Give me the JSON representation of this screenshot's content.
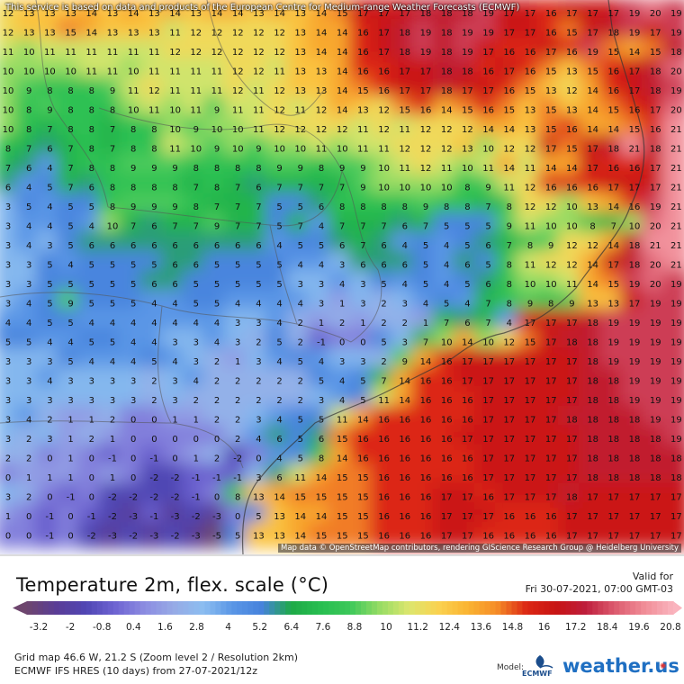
{
  "notice": "This service is based on data and products of the European Centre for Medium-range Weather Forecasts (ECMWF)",
  "attribution": "Map data © OpenStreetMap contributors, rendering GIScience Research Group @ Heidelberg University",
  "legend": {
    "title": "Temperature 2m, flex. scale (°C)",
    "valid_for": "Valid for",
    "valid_date": "Fri 30-07-2021, 07:00 GMT-03",
    "ticks": [
      "-3.2",
      "-2",
      "-0.8",
      "0.4",
      "1.6",
      "2.8",
      "4",
      "5.2",
      "6.4",
      "7.6",
      "8.8",
      "10",
      "11.2",
      "12.4",
      "13.6",
      "14.8",
      "16",
      "17.2",
      "18.4",
      "19.6",
      "20.8"
    ]
  },
  "meta": {
    "grid": "Grid map 46.6 W, 21.2 S (Zoom level 2 / Resolution 2km)",
    "model_run": "ECMWF IFS HRES (10 days) from 27-07-2021/12z",
    "model_label": "Model:",
    "ecmwf": "ECMWF",
    "brand": "weather.us"
  },
  "grid_values": [
    [
      12,
      13,
      13,
      13,
      14,
      13,
      14,
      13,
      14,
      13,
      14,
      14,
      13,
      14,
      13,
      14,
      15,
      17,
      17,
      17,
      18,
      18,
      18,
      19,
      17,
      17,
      16,
      17,
      17,
      17,
      19,
      20,
      19
    ],
    [
      12,
      13,
      13,
      15,
      14,
      13,
      13,
      13,
      11,
      12,
      12,
      12,
      12,
      12,
      13,
      14,
      14,
      16,
      17,
      18,
      19,
      18,
      19,
      19,
      17,
      17,
      16,
      15,
      17,
      18,
      19,
      17,
      19
    ],
    [
      11,
      10,
      11,
      11,
      11,
      11,
      11,
      11,
      12,
      12,
      12,
      12,
      12,
      12,
      13,
      14,
      14,
      16,
      17,
      18,
      19,
      18,
      19,
      17,
      16,
      16,
      17,
      16,
      19,
      15,
      14,
      15,
      18
    ],
    [
      10,
      10,
      10,
      10,
      11,
      11,
      10,
      11,
      11,
      11,
      11,
      12,
      12,
      11,
      13,
      13,
      14,
      16,
      16,
      17,
      17,
      18,
      18,
      16,
      17,
      16,
      15,
      13,
      15,
      16,
      17,
      18,
      20
    ],
    [
      10,
      9,
      8,
      8,
      8,
      9,
      11,
      12,
      11,
      11,
      11,
      12,
      11,
      12,
      13,
      13,
      14,
      15,
      16,
      17,
      17,
      18,
      17,
      17,
      16,
      15,
      13,
      12,
      14,
      16,
      17,
      18,
      19
    ],
    [
      10,
      8,
      9,
      8,
      8,
      8,
      10,
      11,
      10,
      11,
      9,
      11,
      11,
      12,
      11,
      12,
      14,
      13,
      12,
      15,
      16,
      14,
      15,
      16,
      15,
      13,
      15,
      13,
      14,
      15,
      16,
      17,
      20
    ],
    [
      10,
      8,
      7,
      8,
      8,
      7,
      8,
      8,
      10,
      9,
      10,
      10,
      11,
      12,
      12,
      12,
      12,
      11,
      12,
      11,
      12,
      12,
      12,
      14,
      14,
      13,
      15,
      16,
      14,
      14,
      15,
      16,
      21
    ],
    [
      8,
      7,
      6,
      7,
      8,
      7,
      8,
      8,
      11,
      10,
      9,
      10,
      9,
      10,
      10,
      11,
      10,
      11,
      11,
      12,
      12,
      12,
      13,
      10,
      12,
      12,
      17,
      15,
      17,
      18,
      21,
      18,
      21
    ],
    [
      7,
      6,
      4,
      7,
      8,
      8,
      9,
      9,
      9,
      8,
      8,
      8,
      8,
      9,
      9,
      8,
      9,
      9,
      10,
      11,
      12,
      11,
      10,
      11,
      14,
      11,
      14,
      14,
      17,
      16,
      16,
      17,
      21
    ],
    [
      6,
      4,
      5,
      7,
      6,
      8,
      8,
      8,
      8,
      7,
      8,
      7,
      6,
      7,
      7,
      7,
      7,
      9,
      10,
      10,
      10,
      10,
      8,
      9,
      11,
      12,
      16,
      16,
      16,
      17,
      17,
      17,
      21
    ],
    [
      3,
      5,
      4,
      5,
      5,
      8,
      9,
      9,
      9,
      8,
      7,
      7,
      7,
      5,
      5,
      6,
      8,
      8,
      8,
      8,
      9,
      8,
      8,
      7,
      8,
      12,
      12,
      10,
      13,
      14,
      16,
      19,
      21
    ],
    [
      3,
      4,
      4,
      5,
      4,
      10,
      7,
      6,
      7,
      7,
      9,
      7,
      7,
      5,
      7,
      4,
      7,
      7,
      7,
      6,
      7,
      5,
      5,
      5,
      9,
      11,
      10,
      10,
      8,
      7,
      10,
      20,
      21
    ],
    [
      3,
      4,
      3,
      5,
      6,
      6,
      6,
      6,
      6,
      6,
      6,
      6,
      6,
      4,
      5,
      5,
      6,
      7,
      6,
      4,
      5,
      4,
      5,
      6,
      7,
      8,
      9,
      12,
      12,
      14,
      18,
      21,
      21
    ],
    [
      3,
      3,
      5,
      4,
      5,
      5,
      5,
      5,
      6,
      6,
      5,
      5,
      5,
      5,
      4,
      4,
      3,
      6,
      6,
      6,
      5,
      4,
      6,
      5,
      8,
      11,
      12,
      12,
      14,
      17,
      18,
      20,
      21
    ],
    [
      3,
      3,
      5,
      5,
      5,
      5,
      5,
      6,
      6,
      5,
      5,
      5,
      5,
      5,
      3,
      3,
      4,
      3,
      5,
      4,
      5,
      4,
      5,
      6,
      8,
      10,
      10,
      11,
      14,
      15,
      19,
      20,
      19
    ],
    [
      3,
      4,
      5,
      9,
      5,
      5,
      5,
      4,
      4,
      5,
      5,
      4,
      4,
      4,
      4,
      3,
      1,
      3,
      2,
      3,
      4,
      5,
      4,
      7,
      8,
      9,
      8,
      9,
      13,
      13,
      17,
      19,
      19
    ],
    [
      4,
      4,
      5,
      5,
      4,
      4,
      4,
      4,
      4,
      4,
      4,
      3,
      3,
      4,
      2,
      1,
      2,
      1,
      2,
      2,
      1,
      7,
      6,
      7,
      4,
      17,
      17,
      17,
      18,
      19,
      19,
      19,
      19
    ],
    [
      5,
      5,
      4,
      4,
      5,
      5,
      4,
      4,
      3,
      3,
      4,
      3,
      2,
      5,
      2,
      -1,
      0,
      0,
      5,
      3,
      7,
      10,
      14,
      10,
      12,
      15,
      17,
      18,
      18,
      19,
      19,
      19,
      19
    ],
    [
      3,
      3,
      3,
      5,
      4,
      4,
      4,
      5,
      4,
      3,
      2,
      1,
      3,
      4,
      5,
      4,
      3,
      3,
      2,
      9,
      14,
      16,
      17,
      17,
      17,
      17,
      17,
      17,
      18,
      19,
      19,
      19,
      19
    ],
    [
      3,
      3,
      4,
      3,
      3,
      3,
      3,
      2,
      3,
      4,
      2,
      2,
      2,
      2,
      2,
      5,
      4,
      5,
      7,
      14,
      16,
      16,
      17,
      17,
      17,
      17,
      17,
      17,
      18,
      18,
      19,
      19,
      19
    ],
    [
      3,
      3,
      3,
      3,
      3,
      3,
      3,
      2,
      3,
      2,
      2,
      2,
      2,
      2,
      2,
      3,
      4,
      5,
      11,
      14,
      16,
      16,
      16,
      17,
      17,
      17,
      17,
      17,
      18,
      18,
      19,
      19,
      19
    ],
    [
      3,
      4,
      2,
      1,
      1,
      2,
      0,
      0,
      1,
      1,
      2,
      2,
      3,
      4,
      5,
      5,
      11,
      14,
      16,
      16,
      16,
      16,
      16,
      17,
      17,
      17,
      17,
      18,
      18,
      18,
      18,
      19,
      19
    ],
    [
      3,
      2,
      3,
      1,
      2,
      1,
      0,
      0,
      0,
      0,
      0,
      2,
      4,
      6,
      5,
      6,
      15,
      16,
      16,
      16,
      16,
      16,
      17,
      17,
      17,
      17,
      17,
      17,
      18,
      18,
      18,
      18,
      19
    ],
    [
      2,
      2,
      0,
      1,
      0,
      -1,
      0,
      -1,
      0,
      1,
      2,
      -2,
      0,
      4,
      5,
      8,
      14,
      16,
      16,
      16,
      16,
      16,
      16,
      17,
      17,
      17,
      17,
      17,
      18,
      18,
      18,
      18,
      18
    ],
    [
      0,
      1,
      1,
      1,
      0,
      1,
      0,
      -2,
      -2,
      -1,
      -1,
      -1,
      3,
      6,
      11,
      14,
      15,
      15,
      16,
      16,
      16,
      16,
      16,
      17,
      17,
      17,
      17,
      17,
      18,
      18,
      18,
      18,
      18
    ],
    [
      3,
      2,
      0,
      -1,
      0,
      -2,
      -2,
      -2,
      -2,
      -1,
      0,
      8,
      13,
      14,
      15,
      15,
      15,
      15,
      16,
      16,
      16,
      17,
      17,
      16,
      17,
      17,
      17,
      18,
      17,
      17,
      17,
      17,
      17
    ],
    [
      1,
      0,
      -1,
      0,
      -1,
      -2,
      -3,
      -1,
      -3,
      -2,
      -3,
      0,
      5,
      13,
      14,
      14,
      15,
      15,
      16,
      16,
      16,
      17,
      17,
      17,
      16,
      16,
      16,
      17,
      17,
      17,
      17,
      17,
      17
    ],
    [
      0,
      0,
      -1,
      0,
      -2,
      -3,
      -2,
      -3,
      -2,
      -3,
      -5,
      5,
      13,
      13,
      14,
      15,
      15,
      15,
      16,
      16,
      16,
      17,
      17,
      16,
      16,
      16,
      16,
      17,
      17,
      17,
      17,
      17,
      17
    ]
  ]
}
